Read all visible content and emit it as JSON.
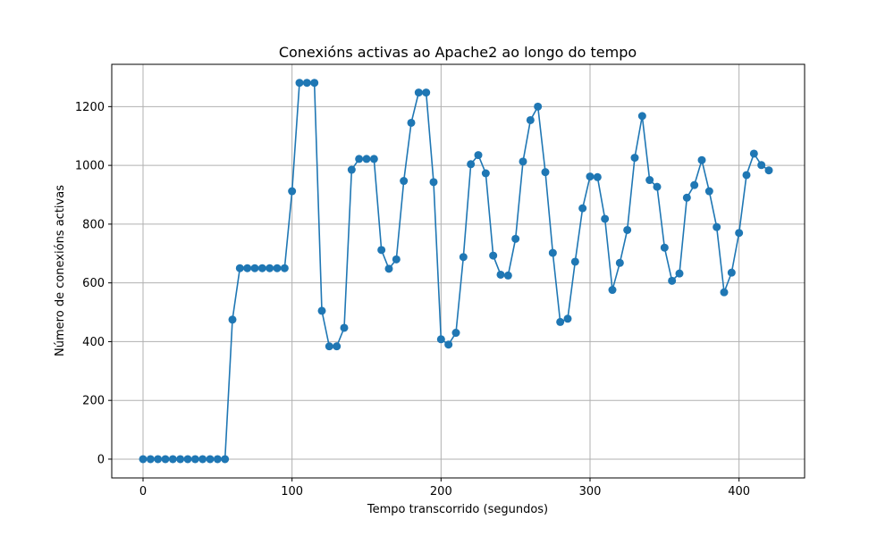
{
  "chart_data": {
    "type": "line",
    "title": "Conexións activas ao Apache2 ao longo do tempo",
    "xlabel": "Tempo transcorrido (segundos)",
    "ylabel": "Número de conexións activas",
    "xlim": [
      -21,
      444
    ],
    "ylim": [
      -64,
      1344
    ],
    "x_ticks": [
      0,
      100,
      200,
      300,
      400
    ],
    "y_ticks": [
      0,
      200,
      400,
      600,
      800,
      1000,
      1200
    ],
    "grid": true,
    "color": "#1f77b4",
    "series": [
      {
        "x": [
          0,
          5,
          10,
          15,
          20,
          25,
          30,
          35,
          40,
          45,
          50,
          55,
          60,
          65,
          70,
          75,
          80,
          85,
          90,
          95,
          100,
          105,
          110,
          115,
          120,
          125,
          130,
          135,
          140,
          145,
          150,
          155,
          160,
          165,
          170,
          175,
          180,
          185,
          190,
          195,
          200,
          205,
          210,
          215,
          220,
          225,
          230,
          235,
          240,
          245,
          250,
          255,
          260,
          265,
          270,
          275,
          280,
          285,
          290,
          295,
          300,
          305,
          310,
          315,
          320,
          325,
          330,
          335,
          340,
          345,
          350,
          355,
          360,
          365,
          370,
          375,
          380,
          385,
          390,
          395,
          400,
          405,
          410,
          415,
          420
        ],
        "y": [
          0,
          0,
          0,
          0,
          0,
          0,
          0,
          0,
          0,
          0,
          0,
          0,
          475,
          650,
          650,
          650,
          650,
          650,
          650,
          650,
          912,
          1281,
          1281,
          1281,
          505,
          384,
          384,
          447,
          985,
          1022,
          1022,
          1022,
          712,
          648,
          680,
          947,
          1145,
          1248,
          1248,
          943,
          408,
          390,
          430,
          688,
          1004,
          1035,
          973,
          693,
          628,
          625,
          750,
          1013,
          1154,
          1200,
          977,
          702,
          467,
          478,
          672,
          854,
          962,
          960,
          818,
          576,
          668,
          780,
          1026,
          1168,
          950,
          927,
          720,
          607,
          632,
          890,
          933,
          1018,
          912,
          790,
          568,
          635,
          770,
          967,
          1040,
          1001,
          983
        ]
      }
    ]
  }
}
